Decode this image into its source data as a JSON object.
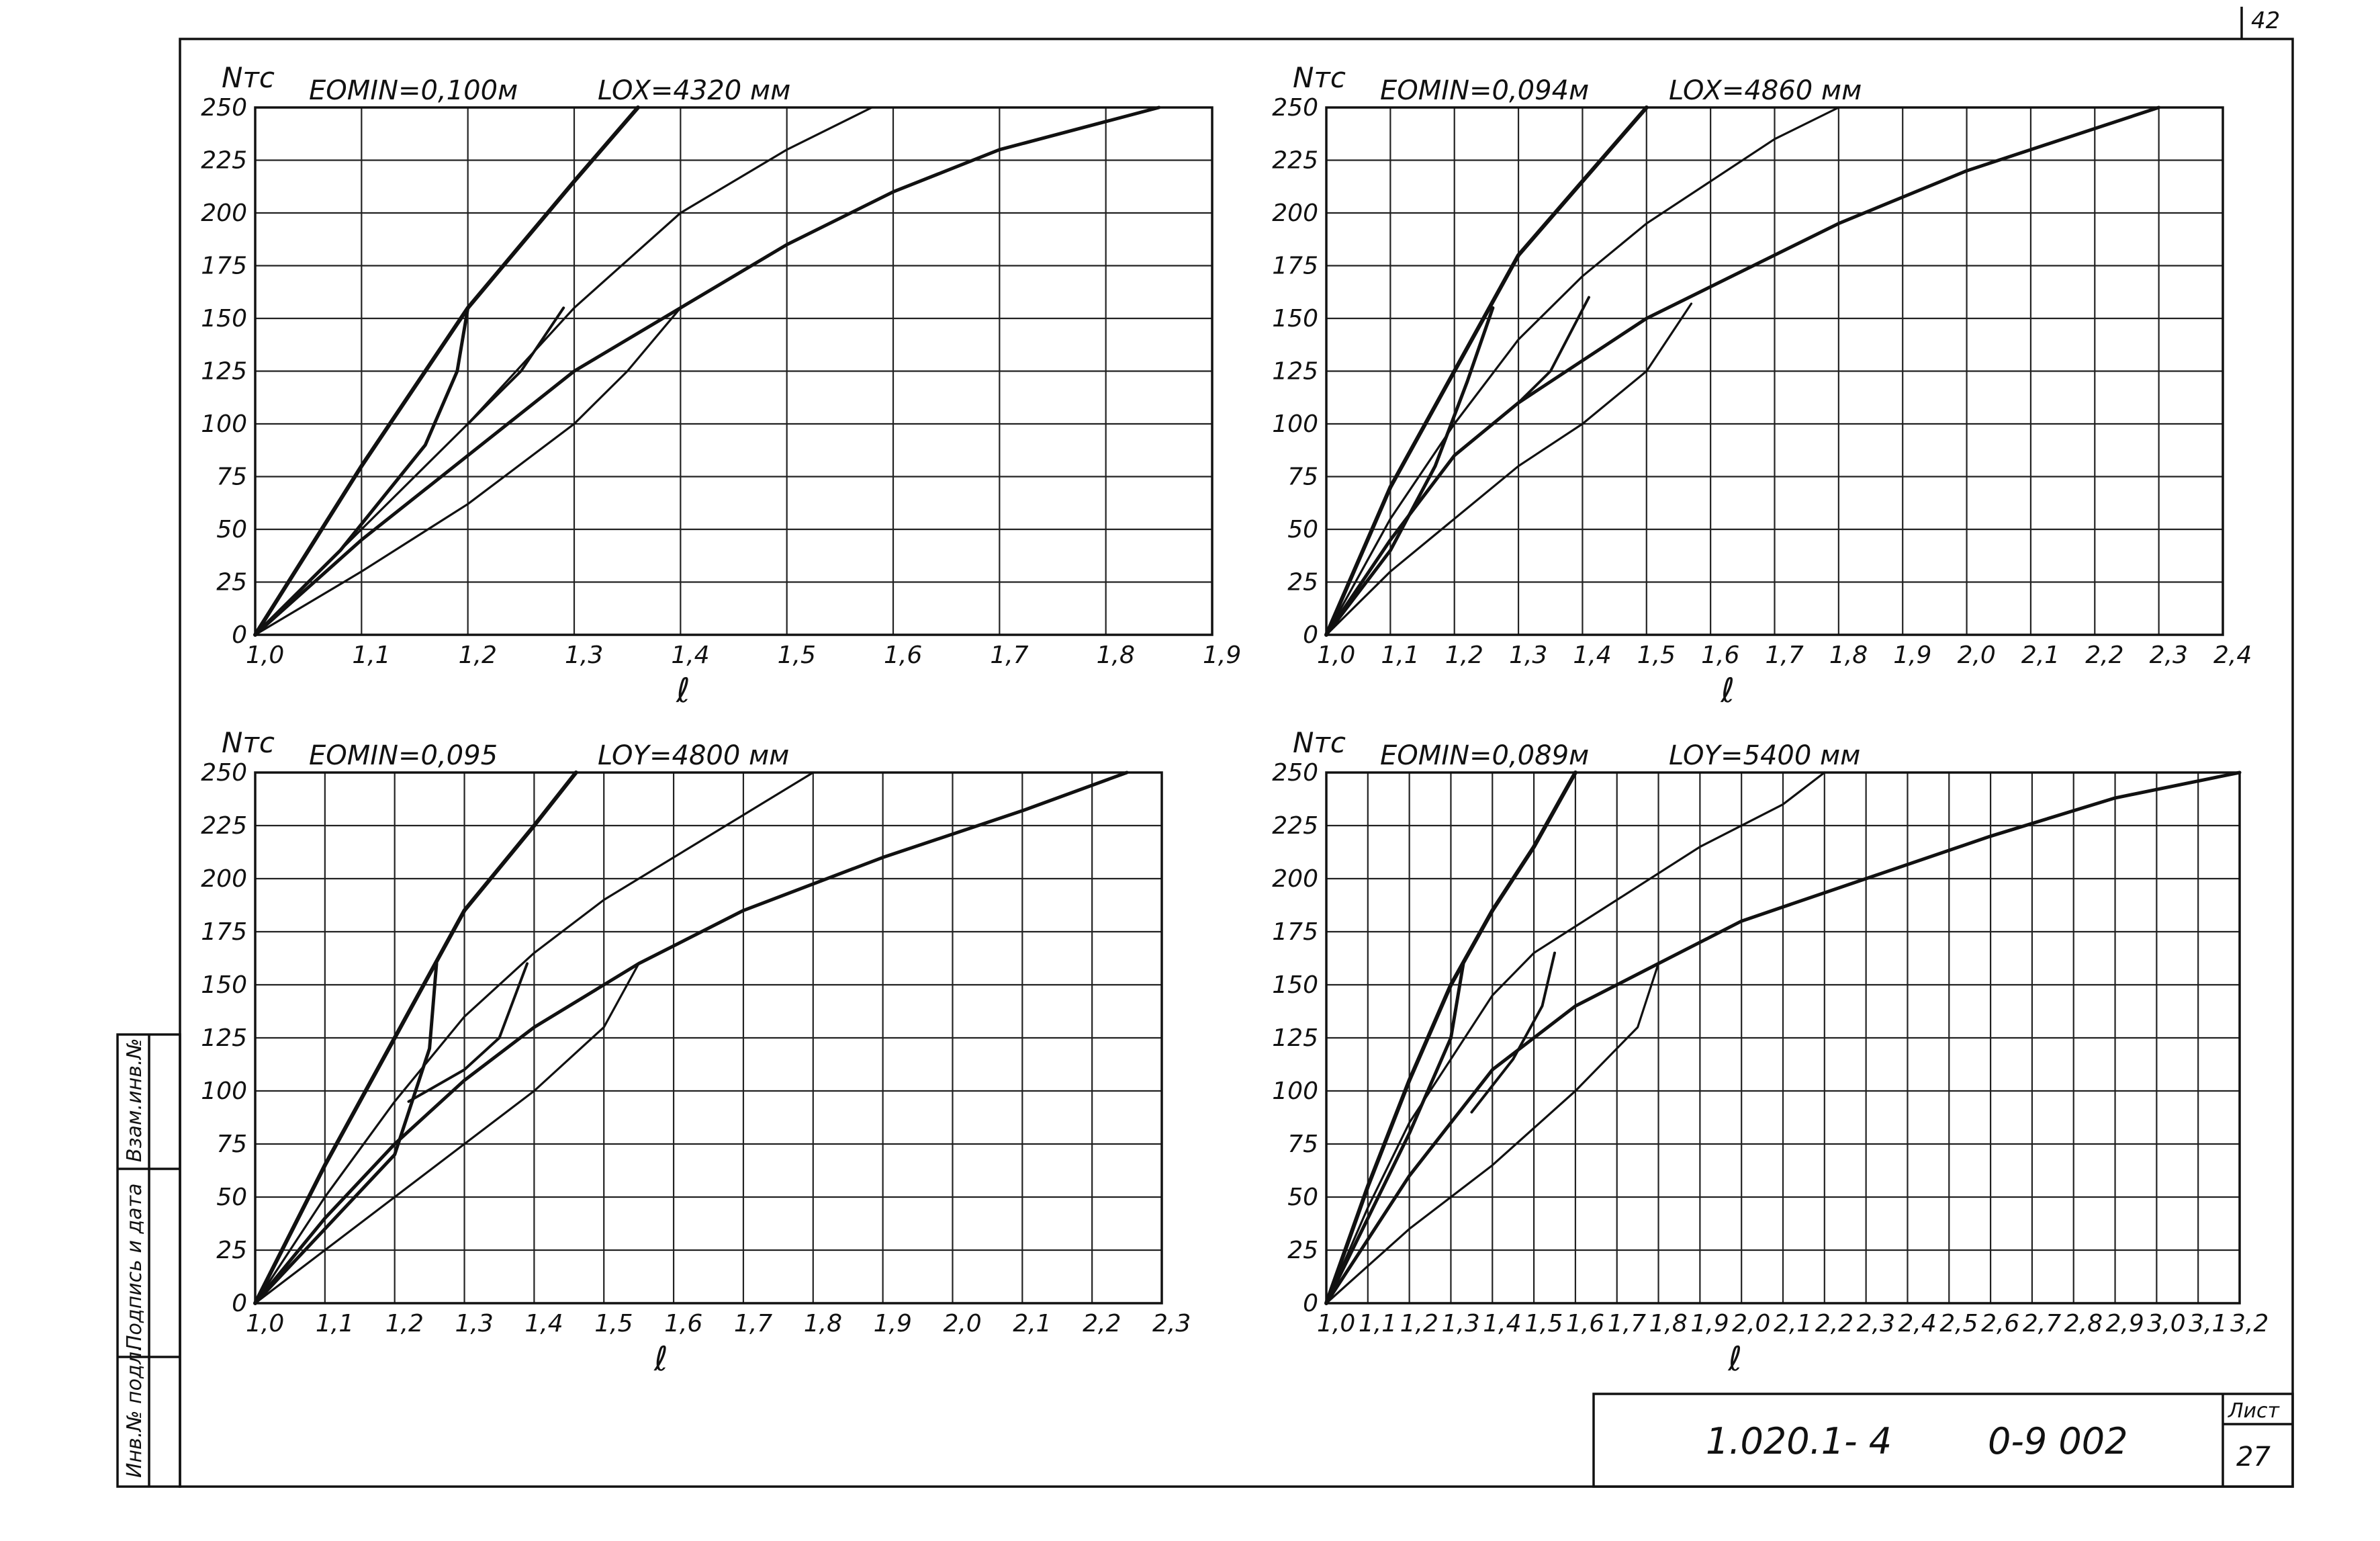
{
  "sheet": {
    "corner_number": "42",
    "title_block": {
      "code": "1.020.1- 4",
      "doc": "0-9 002",
      "sheet_label": "Лист",
      "sheet_number": "27"
    },
    "margin_labels": [
      "Инв.№ подл.",
      "Подпись и дата",
      "Взам.инв.№"
    ]
  },
  "chart_data": [
    {
      "type": "line",
      "y_unit_label": "Nтс",
      "header_left": "EOMIN=0,100м",
      "header_right": "LOX=4320 мм",
      "xlabel": "ℓ",
      "x_ticks": [
        "1,0",
        "1,1",
        "1,2",
        "1,3",
        "1,4",
        "1,5",
        "1,6",
        "1,7",
        "1,8",
        "1,9"
      ],
      "y_ticks": [
        "0",
        "25",
        "50",
        "75",
        "100",
        "125",
        "150",
        "175",
        "200",
        "225",
        "250"
      ],
      "xlim": [
        1.0,
        1.9
      ],
      "ylim": [
        0,
        250
      ],
      "series": [
        {
          "points": [
            [
              1.0,
              0
            ],
            [
              1.05,
              40
            ],
            [
              1.1,
              80
            ],
            [
              1.2,
              155
            ],
            [
              1.3,
              215
            ],
            [
              1.36,
              250
            ]
          ]
        },
        {
          "points": [
            [
              1.0,
              0
            ],
            [
              1.1,
              50
            ],
            [
              1.2,
              100
            ],
            [
              1.3,
              155
            ],
            [
              1.4,
              200
            ],
            [
              1.5,
              230
            ],
            [
              1.58,
              250
            ]
          ]
        },
        {
          "points": [
            [
              1.0,
              0
            ],
            [
              1.1,
              45
            ],
            [
              1.2,
              85
            ],
            [
              1.3,
              125
            ],
            [
              1.4,
              155
            ],
            [
              1.5,
              185
            ],
            [
              1.6,
              210
            ],
            [
              1.7,
              230
            ],
            [
              1.85,
              250
            ]
          ]
        },
        {
          "points": [
            [
              1.0,
              0
            ],
            [
              1.1,
              30
            ],
            [
              1.2,
              62
            ],
            [
              1.3,
              100
            ],
            [
              1.35,
              125
            ],
            [
              1.4,
              155
            ]
          ]
        },
        {
          "points": [
            [
              1.0,
              0
            ],
            [
              1.08,
              40
            ],
            [
              1.16,
              90
            ],
            [
              1.19,
              125
            ],
            [
              1.2,
              155
            ]
          ]
        },
        {
          "points": [
            [
              1.2,
              100
            ],
            [
              1.25,
              125
            ],
            [
              1.29,
              155
            ]
          ]
        }
      ]
    },
    {
      "type": "line",
      "y_unit_label": "Nтс",
      "header_left": "EOMIN=0,094м",
      "header_right": "LOX=4860 мм",
      "xlabel": "ℓ",
      "x_ticks": [
        "1,0",
        "1,1",
        "1,2",
        "1,3",
        "1,4",
        "1,5",
        "1,6",
        "1,7",
        "1,8",
        "1,9",
        "2,0",
        "2,1",
        "2,2",
        "2,3",
        "2,4"
      ],
      "y_ticks": [
        "0",
        "25",
        "50",
        "75",
        "100",
        "125",
        "150",
        "175",
        "200",
        "225",
        "250"
      ],
      "xlim": [
        1.0,
        2.4
      ],
      "ylim": [
        0,
        250
      ],
      "series": [
        {
          "points": [
            [
              1.0,
              0
            ],
            [
              1.1,
              70
            ],
            [
              1.2,
              125
            ],
            [
              1.3,
              180
            ],
            [
              1.4,
              215
            ],
            [
              1.5,
              250
            ]
          ]
        },
        {
          "points": [
            [
              1.0,
              0
            ],
            [
              1.1,
              55
            ],
            [
              1.2,
              100
            ],
            [
              1.3,
              140
            ],
            [
              1.4,
              170
            ],
            [
              1.5,
              195
            ],
            [
              1.6,
              215
            ],
            [
              1.7,
              235
            ],
            [
              1.8,
              250
            ]
          ]
        },
        {
          "points": [
            [
              1.0,
              0
            ],
            [
              1.1,
              45
            ],
            [
              1.2,
              85
            ],
            [
              1.3,
              110
            ],
            [
              1.4,
              130
            ],
            [
              1.5,
              150
            ],
            [
              1.6,
              165
            ],
            [
              1.8,
              195
            ],
            [
              2.0,
              220
            ],
            [
              2.2,
              240
            ],
            [
              2.3,
              250
            ]
          ]
        },
        {
          "points": [
            [
              1.0,
              0
            ],
            [
              1.1,
              30
            ],
            [
              1.2,
              55
            ],
            [
              1.3,
              80
            ],
            [
              1.4,
              100
            ],
            [
              1.5,
              125
            ],
            [
              1.57,
              157
            ]
          ]
        },
        {
          "points": [
            [
              1.0,
              0
            ],
            [
              1.1,
              40
            ],
            [
              1.17,
              80
            ],
            [
              1.22,
              120
            ],
            [
              1.26,
              155
            ]
          ]
        },
        {
          "points": [
            [
              1.22,
              90
            ],
            [
              1.3,
              110
            ],
            [
              1.35,
              125
            ],
            [
              1.41,
              160
            ]
          ]
        }
      ]
    },
    {
      "type": "line",
      "y_unit_label": "Nтс",
      "header_left": "EOMIN=0,095",
      "header_right": "LOY=4800 мм",
      "xlabel": "ℓ",
      "x_ticks": [
        "1,0",
        "1,1",
        "1,2",
        "1,3",
        "1,4",
        "1,5",
        "1,6",
        "1,7",
        "1,8",
        "1,9",
        "2,0",
        "2,1",
        "2,2",
        "2,3"
      ],
      "y_ticks": [
        "0",
        "25",
        "50",
        "75",
        "100",
        "125",
        "150",
        "175",
        "200",
        "225",
        "250"
      ],
      "xlim": [
        1.0,
        2.3
      ],
      "ylim": [
        0,
        250
      ],
      "series": [
        {
          "points": [
            [
              1.0,
              0
            ],
            [
              1.1,
              65
            ],
            [
              1.2,
              125
            ],
            [
              1.3,
              185
            ],
            [
              1.4,
              225
            ],
            [
              1.46,
              250
            ]
          ]
        },
        {
          "points": [
            [
              1.0,
              0
            ],
            [
              1.1,
              50
            ],
            [
              1.2,
              95
            ],
            [
              1.3,
              135
            ],
            [
              1.4,
              165
            ],
            [
              1.5,
              190
            ],
            [
              1.6,
              210
            ],
            [
              1.7,
              230
            ],
            [
              1.8,
              250
            ]
          ]
        },
        {
          "points": [
            [
              1.0,
              0
            ],
            [
              1.1,
              40
            ],
            [
              1.2,
              75
            ],
            [
              1.3,
              105
            ],
            [
              1.4,
              130
            ],
            [
              1.55,
              160
            ],
            [
              1.7,
              185
            ],
            [
              1.9,
              210
            ],
            [
              2.1,
              232
            ],
            [
              2.25,
              250
            ]
          ]
        },
        {
          "points": [
            [
              1.0,
              0
            ],
            [
              1.1,
              25
            ],
            [
              1.2,
              50
            ],
            [
              1.3,
              75
            ],
            [
              1.4,
              100
            ],
            [
              1.5,
              130
            ],
            [
              1.55,
              160
            ]
          ]
        },
        {
          "points": [
            [
              1.0,
              0
            ],
            [
              1.1,
              35
            ],
            [
              1.2,
              70
            ],
            [
              1.25,
              120
            ],
            [
              1.26,
              160
            ]
          ]
        },
        {
          "points": [
            [
              1.22,
              95
            ],
            [
              1.3,
              110
            ],
            [
              1.35,
              125
            ],
            [
              1.39,
              160
            ]
          ]
        }
      ]
    },
    {
      "type": "line",
      "y_unit_label": "Nтс",
      "header_left": "EOMIN=0,089м",
      "header_right": "LOY=5400 мм",
      "xlabel": "ℓ",
      "x_ticks": [
        "1,0",
        "1,1",
        "1,2",
        "1,3",
        "1,4",
        "1,5",
        "1,6",
        "1,7",
        "1,8",
        "1,9",
        "2,0",
        "2,1",
        "2,2",
        "2,3",
        "2,4",
        "2,5",
        "2,6",
        "2,7",
        "2,8",
        "2,9",
        "3,0",
        "3,1",
        "3,2"
      ],
      "y_ticks": [
        "0",
        "25",
        "50",
        "75",
        "100",
        "125",
        "150",
        "175",
        "200",
        "225",
        "250"
      ],
      "xlim": [
        1.0,
        3.2
      ],
      "ylim": [
        0,
        250
      ],
      "series": [
        {
          "points": [
            [
              1.0,
              0
            ],
            [
              1.1,
              55
            ],
            [
              1.2,
              105
            ],
            [
              1.3,
              150
            ],
            [
              1.4,
              185
            ],
            [
              1.5,
              215
            ],
            [
              1.6,
              250
            ]
          ]
        },
        {
          "points": [
            [
              1.0,
              0
            ],
            [
              1.1,
              45
            ],
            [
              1.2,
              85
            ],
            [
              1.3,
              115
            ],
            [
              1.4,
              145
            ],
            [
              1.5,
              165
            ],
            [
              1.7,
              190
            ],
            [
              1.9,
              215
            ],
            [
              2.1,
              235
            ],
            [
              2.2,
              250
            ]
          ]
        },
        {
          "points": [
            [
              1.0,
              0
            ],
            [
              1.2,
              60
            ],
            [
              1.4,
              110
            ],
            [
              1.6,
              140
            ],
            [
              1.8,
              160
            ],
            [
              2.0,
              180
            ],
            [
              2.3,
              200
            ],
            [
              2.6,
              220
            ],
            [
              2.9,
              238
            ],
            [
              3.2,
              250
            ]
          ]
        },
        {
          "points": [
            [
              1.0,
              0
            ],
            [
              1.2,
              35
            ],
            [
              1.4,
              65
            ],
            [
              1.6,
              100
            ],
            [
              1.75,
              130
            ],
            [
              1.8,
              160
            ]
          ]
        },
        {
          "points": [
            [
              1.0,
              0
            ],
            [
              1.1,
              40
            ],
            [
              1.2,
              80
            ],
            [
              1.3,
              125
            ],
            [
              1.33,
              160
            ]
          ]
        },
        {
          "points": [
            [
              1.35,
              90
            ],
            [
              1.45,
              115
            ],
            [
              1.52,
              140
            ],
            [
              1.55,
              165
            ]
          ]
        }
      ]
    }
  ]
}
